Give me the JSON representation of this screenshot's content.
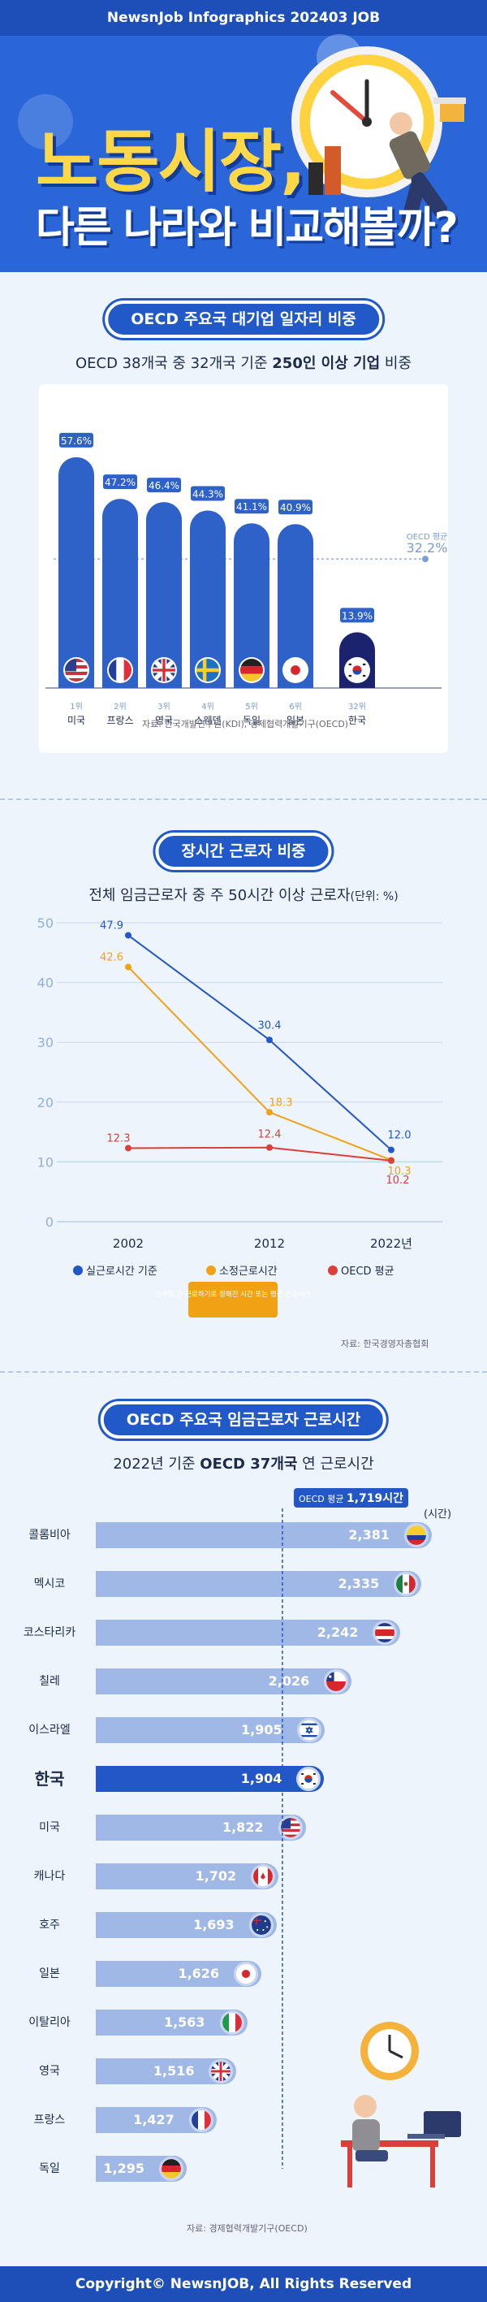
{
  "header": {
    "topbar": "NewsnJob Infographics 202403 JOB",
    "title_line1": "노동시장,",
    "title_line2": "다른 나라와 비교해볼까?"
  },
  "section1": {
    "pill": "OECD 주요국 대기업 일자리 비중",
    "subtitle_pre": "OECD 38개국 중 32개국 기준 ",
    "subtitle_bold": "250인 이상 기업",
    "subtitle_post": " 비중",
    "source": "자료: 한국개발연구원(KDI), 경제협력개발기구(OECD)",
    "avg_label": "OECD 평균",
    "avg_value": "32.2%"
  },
  "section2": {
    "pill": "장시간 근로자 비중",
    "subtitle_main": "전체 임금근로자 중 주 50시간 이상 근로자",
    "subtitle_unit": "(단위: %)",
    "note": "임주일 간 근로하기로 정해진 시간 또는 평균 근로시간",
    "source": "자료: 한국경영자총협회"
  },
  "section3": {
    "pill": "OECD 주요국 임금근로자 근로시간",
    "subtitle_pre": "2022년 기준 ",
    "subtitle_bold": "OECD 37개국",
    "subtitle_post": " 연 근로시간",
    "avg_tag_label": "OECD 평균",
    "avg_tag_value": "1,719시간",
    "unit": "(시간)",
    "source": "자료: 경제협력개발기구(OECD)"
  },
  "footer": "Copyright© NewsnJOB, All Rights Reserved",
  "colors": {
    "primary": "#2357c7",
    "orange": "#f0a214",
    "red": "#d9403a",
    "lightbar": "#9fb8e6"
  },
  "chart_data": [
    {
      "type": "bar",
      "title": "OECD 38개국 중 32개국 기준 250인 이상 기업 비중",
      "categories": [
        "미국",
        "프랑스",
        "영국",
        "스웨덴",
        "독일",
        "일본",
        "한국"
      ],
      "ranks": [
        "1위",
        "2위",
        "3위",
        "4위",
        "5위",
        "6위",
        "32위"
      ],
      "value_labels": [
        "57.6%",
        "47.2%",
        "46.4%",
        "44.3%",
        "41.1%",
        "40.9%",
        "13.9%"
      ],
      "values": [
        57.6,
        47.2,
        46.4,
        44.3,
        41.1,
        40.9,
        13.9
      ],
      "reference_line": {
        "label": "OECD 평균",
        "value": 32.2
      },
      "ylim": [
        0,
        60
      ]
    },
    {
      "type": "line",
      "title": "전체 임금근로자 중 주 50시간 이상 근로자",
      "x": [
        "2002",
        "2012",
        "2022년"
      ],
      "ylim": [
        0,
        50
      ],
      "yticks": [
        0,
        10,
        20,
        30,
        40,
        50
      ],
      "series": [
        {
          "name": "실근로시간 기준",
          "values": [
            47.9,
            30.4,
            12.0
          ],
          "labels": [
            "47.9",
            "30.4",
            "12.0"
          ],
          "color": "#2357c7"
        },
        {
          "name": "소정근로시간",
          "values": [
            42.6,
            18.3,
            10.3
          ],
          "labels": [
            "42.6",
            "18.3",
            "10.3"
          ],
          "color": "#f0a214"
        },
        {
          "name": "OECD 평균",
          "values": [
            12.3,
            12.4,
            10.2
          ],
          "labels": [
            "12.3",
            "12.4",
            "10.2"
          ],
          "color": "#d9403a"
        }
      ]
    },
    {
      "type": "bar",
      "orientation": "horizontal",
      "title": "2022년 기준 OECD 37개국 연 근로시간",
      "categories": [
        "콜롬비아",
        "멕시코",
        "코스타리카",
        "칠레",
        "이스라엘",
        "한국",
        "미국",
        "캐나다",
        "호주",
        "일본",
        "이탈리아",
        "영국",
        "프랑스",
        "독일"
      ],
      "value_labels": [
        "2,381",
        "2,335",
        "2,242",
        "2,026",
        "1,905",
        "1,904",
        "1,822",
        "1,702",
        "1,693",
        "1,626",
        "1,563",
        "1,516",
        "1,427",
        "1,295"
      ],
      "values": [
        2381,
        2335,
        2242,
        2026,
        1905,
        1904,
        1822,
        1702,
        1693,
        1626,
        1563,
        1516,
        1427,
        1295
      ],
      "reference_line": {
        "label": "OECD 평균",
        "value": 1719
      },
      "highlight": "한국"
    }
  ]
}
